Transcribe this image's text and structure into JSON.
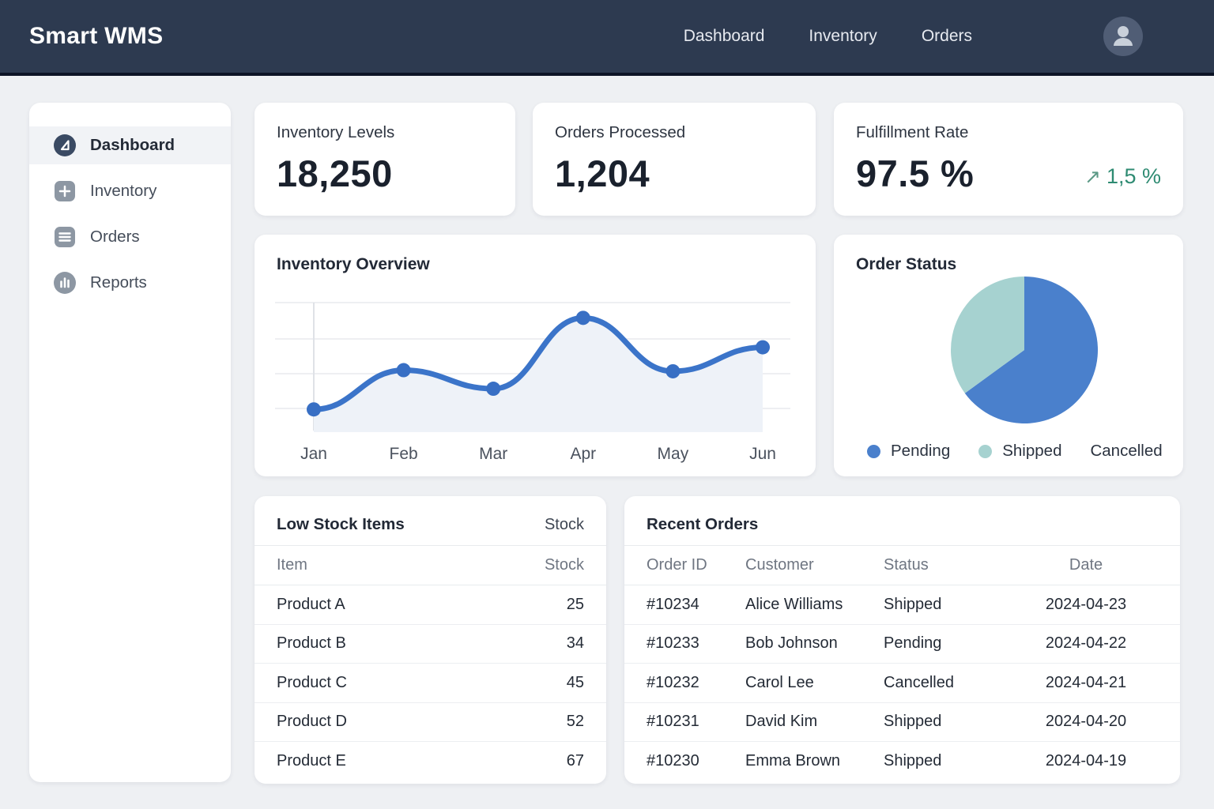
{
  "header": {
    "brand": "Smart WMS",
    "nav": [
      {
        "label": "Dashboard"
      },
      {
        "label": "Inventory"
      },
      {
        "label": "Orders"
      }
    ]
  },
  "sidebar": {
    "items": [
      {
        "label": "Dashboard",
        "icon": "dashboard-icon",
        "active": true
      },
      {
        "label": "Inventory",
        "icon": "plus-icon",
        "active": false
      },
      {
        "label": "Orders",
        "icon": "list-icon",
        "active": false
      },
      {
        "label": "Reports",
        "icon": "bar-chart-icon",
        "active": false
      }
    ]
  },
  "stats": [
    {
      "label": "Inventory Levels",
      "value": "18,250"
    },
    {
      "label": "Orders Processed",
      "value": "1,204"
    },
    {
      "label": "Fulfillment Rate",
      "value": "97.5 %",
      "delta": "1,5 %",
      "delta_icon": "trend-up-arrow"
    }
  ],
  "chart_data": [
    {
      "type": "line",
      "title": "Inventory Overview",
      "x": [
        "Jan",
        "Feb",
        "Mar",
        "Apr",
        "May",
        "Jun"
      ],
      "values": [
        2,
        38,
        21,
        86,
        37,
        59
      ],
      "ylim": [
        0,
        100
      ],
      "grid": true,
      "legend_position": "none",
      "line_color": "#3b74c9",
      "point_color": "#386fc4",
      "fill_color": "#eef2f8"
    },
    {
      "type": "pie",
      "title": "Order Status",
      "labels": [
        "Pending",
        "Shipped",
        "Cancelled"
      ],
      "values": [
        65,
        35,
        0
      ],
      "colors": [
        "#4a80cc",
        "#a6d2d0",
        null
      ],
      "legend_position": "bottom"
    }
  ],
  "low_stock": {
    "title": "Low Stock Items",
    "header_right": "Stock",
    "columns": [
      "Item",
      "Stock"
    ],
    "rows": [
      [
        "Product A",
        "25"
      ],
      [
        "Product B",
        "34"
      ],
      [
        "Product C",
        "45"
      ],
      [
        "Product D",
        "52"
      ],
      [
        "Product E",
        "67"
      ]
    ]
  },
  "recent_orders": {
    "title": "Recent Orders",
    "columns": [
      "Order ID",
      "Customer",
      "Status",
      "Date"
    ],
    "rows": [
      [
        "#10234",
        "Alice Williams",
        "Shipped",
        "2024-04-23"
      ],
      [
        "#10233",
        "Bob Johnson",
        "Pending",
        "2024-04-22"
      ],
      [
        "#10232",
        "Carol Lee",
        "Cancelled",
        "2024-04-21"
      ],
      [
        "#10231",
        "David Kim",
        "Shipped",
        "2024-04-20"
      ],
      [
        "#10230",
        "Emma Brown",
        "Shipped",
        "2024-04-19"
      ]
    ]
  },
  "colors": {
    "header_bg": "#2d3a50",
    "line_blue": "#3b74c9",
    "pie_blue": "#4a80cc",
    "pie_teal": "#a6d2d0",
    "delta_green": "#2e8b72"
  }
}
